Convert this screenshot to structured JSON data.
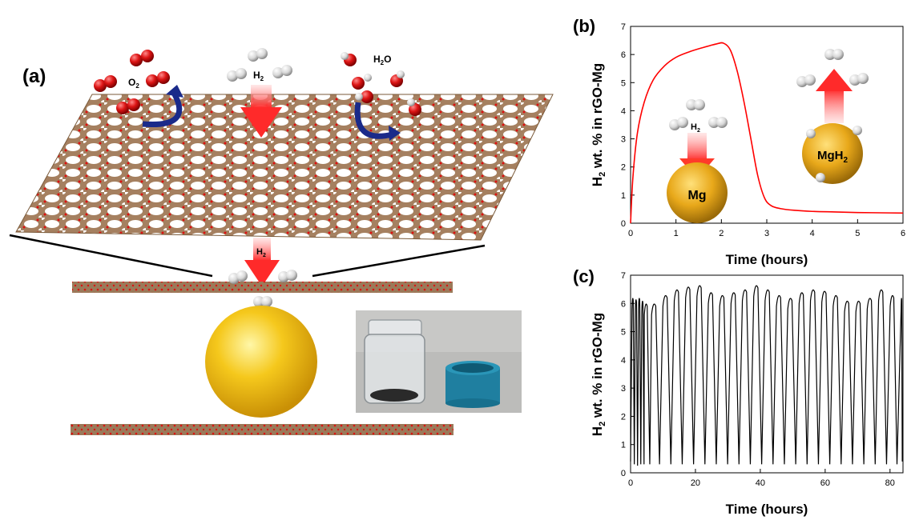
{
  "panel_a": {
    "label": "(a)",
    "o2_label": "O",
    "o2_sub": "2",
    "h2_label": "H",
    "h2_sub": "2",
    "h2o_label": "H",
    "h2o_sub": "2",
    "h2o_tail": "O",
    "h2_arrow2_label": "H",
    "h2_arrow2_sub": "2",
    "colors": {
      "oxygen": "#cc1010",
      "hydrogen": "#d8d8d8",
      "carbon": "#8a6a4a",
      "sphere": "#f2c21a",
      "arrow_blue": "#1a2a8a",
      "arrow_red": "#ff3030"
    }
  },
  "chart_data": [
    {
      "panel": "(b)",
      "type": "line",
      "xlabel": "Time (hours)",
      "ylabel_parts": [
        "H",
        "2",
        " wt. % in rGO-Mg"
      ],
      "xlim": [
        0,
        6
      ],
      "ylim": [
        0,
        7
      ],
      "xticks": [
        0,
        1,
        2,
        3,
        4,
        5,
        6
      ],
      "yticks": [
        0,
        1,
        2,
        3,
        4,
        5,
        6,
        7
      ],
      "series": [
        {
          "color": "#ff0000",
          "x": [
            0,
            0.05,
            0.15,
            0.3,
            0.5,
            0.75,
            1.0,
            1.3,
            1.6,
            1.9,
            2.05,
            2.2,
            2.35,
            2.5,
            2.65,
            2.8,
            2.95,
            3.1,
            3.3,
            3.6,
            4.0,
            4.5,
            5.0,
            5.5,
            6.0
          ],
          "y": [
            0,
            1.6,
            3.2,
            4.3,
            5.1,
            5.6,
            5.9,
            6.1,
            6.25,
            6.38,
            6.4,
            6.15,
            5.4,
            4.3,
            3.0,
            1.7,
            0.9,
            0.62,
            0.52,
            0.46,
            0.42,
            0.4,
            0.38,
            0.37,
            0.36
          ]
        }
      ],
      "insets": {
        "mg_label": "Mg",
        "mgh2_label": "Mg",
        "mgh2_sub": "H",
        "mgh2_num": "2",
        "h2_label": "H",
        "h2_sub": "2"
      }
    },
    {
      "panel": "(c)",
      "type": "line",
      "xlabel": "Time (hours)",
      "ylabel_parts": [
        "H",
        "2",
        " wt. % in rGO-Mg"
      ],
      "xlim": [
        0,
        84
      ],
      "ylim": [
        0,
        7
      ],
      "xticks": [
        0,
        20,
        40,
        60,
        80
      ],
      "yticks": [
        0,
        1,
        2,
        3,
        4,
        5,
        6,
        7
      ],
      "series": [
        {
          "color": "#000000",
          "cycle_peaks_x": [
            0.6,
            1.6,
            2.6,
            3.6,
            4.6,
            7.0,
            10.5,
            14.0,
            17.5,
            21.0,
            24.5,
            28.0,
            31.5,
            35.0,
            38.5,
            42.0,
            45.5,
            49.0,
            52.5,
            56.0,
            59.5,
            63.0,
            66.5,
            70.0,
            73.5,
            77.0,
            80.5,
            83.5
          ],
          "cycle_peaks_y": [
            6.3,
            6.25,
            6.3,
            6.2,
            6.1,
            6.1,
            6.4,
            6.6,
            6.7,
            6.75,
            6.5,
            6.4,
            6.5,
            6.6,
            6.75,
            6.6,
            6.4,
            6.3,
            6.5,
            6.6,
            6.55,
            6.4,
            6.2,
            6.2,
            6.3,
            6.6,
            6.4,
            6.3
          ],
          "cycle_min_y": [
            0.3,
            0.25,
            0.3,
            0.3,
            0.3,
            0.3,
            0.3,
            0.3,
            0.3,
            0.3,
            0.3,
            0.3,
            0.3,
            0.3,
            0.3,
            0.3,
            0.3,
            0.3,
            0.3,
            0.3,
            0.3,
            0.3,
            0.3,
            0.3,
            0.3,
            0.3,
            0.3,
            0.4
          ]
        }
      ]
    }
  ]
}
